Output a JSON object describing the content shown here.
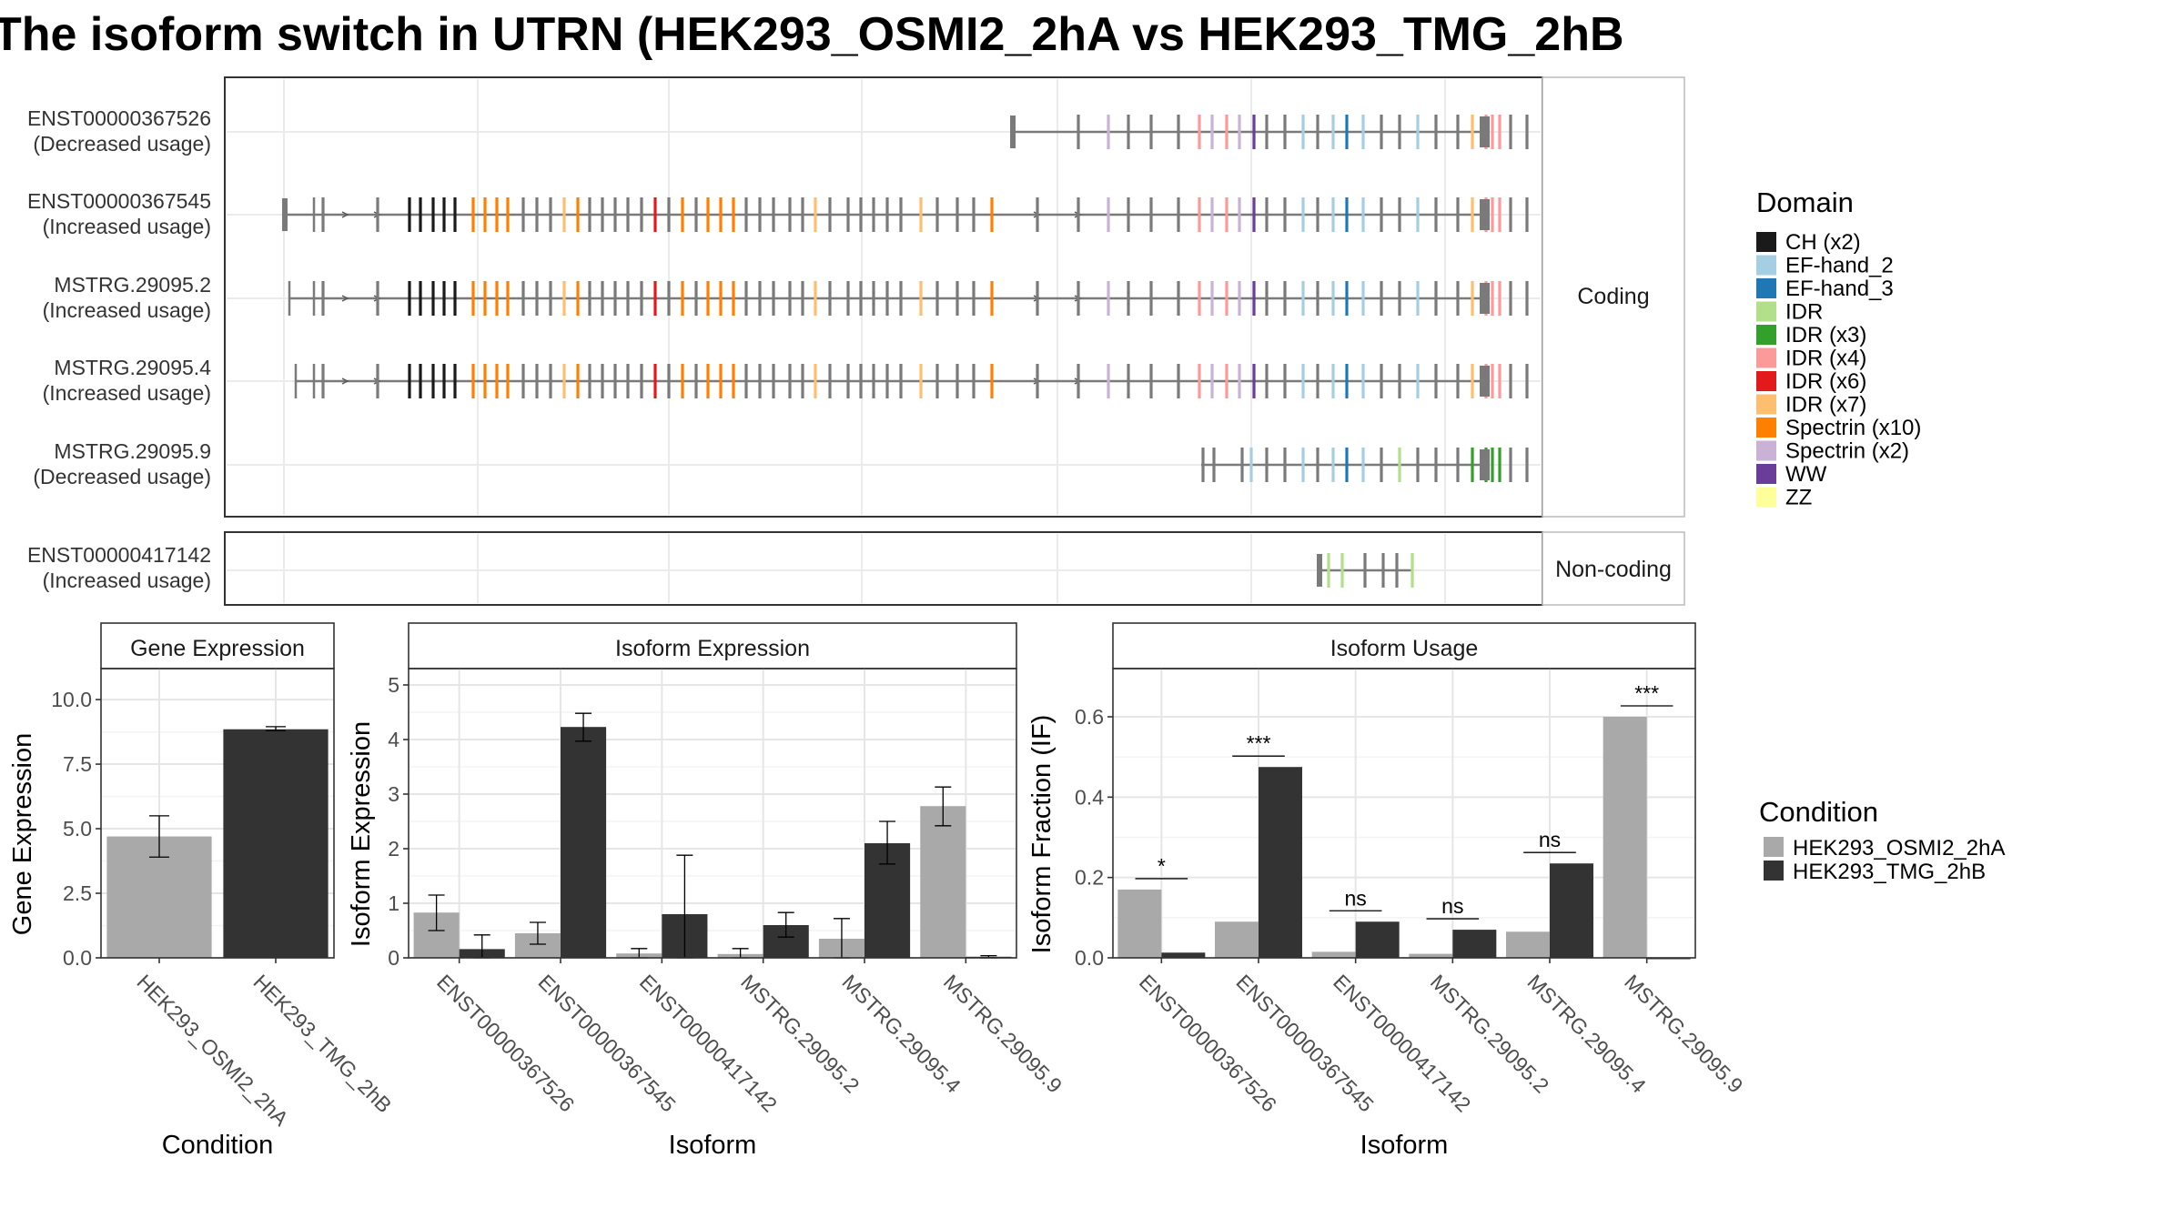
{
  "title": "The isoform switch in UTRN (HEK293_OSMI2_2hA vs HEK293_TMG_2hB",
  "structure": {
    "panel_labels": [
      "Coding",
      "Non-coding"
    ],
    "tracks": [
      {
        "id": "ENST00000367526",
        "usage": "(Decreased usage)",
        "panel": 0
      },
      {
        "id": "ENST00000367545",
        "usage": "(Increased usage)",
        "panel": 0
      },
      {
        "id": "MSTRG.29095.2",
        "usage": "(Increased usage)",
        "panel": 0
      },
      {
        "id": "MSTRG.29095.4",
        "usage": "(Increased usage)",
        "panel": 0
      },
      {
        "id": "MSTRG.29095.9",
        "usage": "(Decreased usage)",
        "panel": 0
      },
      {
        "id": "ENST00000417142",
        "usage": "(Increased usage)",
        "panel": 1
      }
    ],
    "domain_legend": {
      "title": "Domain",
      "items": [
        {
          "label": "CH (x2)",
          "color": "#1a1a1a"
        },
        {
          "label": "EF-hand_2",
          "color": "#a6cee3"
        },
        {
          "label": "EF-hand_3",
          "color": "#1f78b4"
        },
        {
          "label": "IDR",
          "color": "#b2df8a"
        },
        {
          "label": "IDR (x3)",
          "color": "#33a02c"
        },
        {
          "label": "IDR (x4)",
          "color": "#fb9a99"
        },
        {
          "label": "IDR (x6)",
          "color": "#e31a1c"
        },
        {
          "label": "IDR (x7)",
          "color": "#fdbf6f"
        },
        {
          "label": "Spectrin (x10)",
          "color": "#ff7f00"
        },
        {
          "label": "Spectrin (x2)",
          "color": "#cab2d6"
        },
        {
          "label": "WW",
          "color": "#6a3d9a"
        },
        {
          "label": "ZZ",
          "color": "#ffff99"
        }
      ]
    }
  },
  "condition_legend": {
    "title": "Condition",
    "items": [
      {
        "label": "HEK293_OSMI2_2hA",
        "color": "#a9a9a9"
      },
      {
        "label": "HEK293_TMG_2hB",
        "color": "#333333"
      }
    ]
  },
  "chart_data": [
    {
      "type": "bar",
      "title": "Gene Expression",
      "xlabel": "Condition",
      "ylabel": "Gene Expression",
      "categories": [
        "HEK293_OSMI2_2hA",
        "HEK293_TMG_2hB"
      ],
      "values": [
        4.7,
        8.85
      ],
      "error": [
        [
          3.9,
          5.5
        ],
        [
          8.8,
          8.95
        ]
      ],
      "colors": [
        "#a9a9a9",
        "#333333"
      ],
      "ylim": [
        0,
        11.2
      ],
      "yticks": [
        0,
        2.5,
        5,
        7.5,
        10
      ],
      "ytick_labels": [
        "0.0",
        "2.5",
        "5.0",
        "7.5",
        "10.0"
      ],
      "grid": true
    },
    {
      "type": "bar",
      "title": "Isoform Expression",
      "xlabel": "Isoform",
      "ylabel": "Isoform Expression",
      "categories": [
        "ENST00000367526",
        "ENST00000367545",
        "ENST00000417142",
        "MSTRG.29095.2",
        "MSTRG.29095.4",
        "MSTRG.29095.9"
      ],
      "series": [
        {
          "name": "HEK293_OSMI2_2hA",
          "color": "#a9a9a9",
          "values": [
            0.83,
            0.45,
            0.08,
            0.07,
            0.35,
            2.78
          ],
          "error": [
            [
              0.5,
              1.15
            ],
            [
              0.25,
              0.65
            ],
            [
              0.0,
              0.17
            ],
            [
              0.0,
              0.17
            ],
            [
              0.0,
              0.72
            ],
            [
              2.42,
              3.13
            ]
          ]
        },
        {
          "name": "HEK293_TMG_2hB",
          "color": "#333333",
          "values": [
            0.16,
            4.23,
            0.8,
            0.6,
            2.1,
            0.02
          ],
          "error": [
            [
              0.0,
              0.42
            ],
            [
              3.97,
              4.48
            ],
            [
              0.0,
              1.88
            ],
            [
              0.38,
              0.83
            ],
            [
              1.72,
              2.5
            ],
            [
              0.0,
              0.04
            ]
          ]
        }
      ],
      "ylim": [
        0,
        5.3
      ],
      "yticks": [
        0,
        1,
        2,
        3,
        4,
        5
      ],
      "ytick_labels": [
        "0",
        "1",
        "2",
        "3",
        "4",
        "5"
      ],
      "grid": true
    },
    {
      "type": "bar",
      "title": "Isoform Usage",
      "xlabel": "Isoform",
      "ylabel": "Isoform Fraction (IF)",
      "categories": [
        "ENST00000367526",
        "ENST00000367545",
        "ENST00000417142",
        "MSTRG.29095.2",
        "MSTRG.29095.4",
        "MSTRG.29095.9"
      ],
      "series": [
        {
          "name": "HEK293_OSMI2_2hA",
          "color": "#a9a9a9",
          "values": [
            0.17,
            0.09,
            0.015,
            0.01,
            0.065,
            0.6
          ]
        },
        {
          "name": "HEK293_TMG_2hB",
          "color": "#333333",
          "values": [
            0.013,
            0.475,
            0.09,
            0.07,
            0.235,
            0.0
          ]
        }
      ],
      "significance": [
        "*",
        "***",
        "ns",
        "ns",
        "ns",
        "***"
      ],
      "ylim": [
        0,
        0.72
      ],
      "yticks": [
        0,
        0.2,
        0.4,
        0.6
      ],
      "ytick_labels": [
        "0.0",
        "0.2",
        "0.4",
        "0.6"
      ],
      "grid": true
    }
  ]
}
